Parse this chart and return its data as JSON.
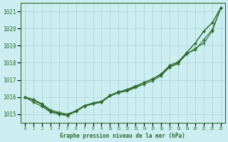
{
  "title": "Graphe pression niveau de la mer (hPa)",
  "bg_color": "#cceef0",
  "grid_color": "#aad4d8",
  "line_color": "#2d6a2d",
  "text_color": "#2d6a2d",
  "xlim_min": -0.5,
  "xlim_max": 23.5,
  "ylim_min": 1014.5,
  "ylim_max": 1021.5,
  "yticks": [
    1015,
    1016,
    1017,
    1018,
    1019,
    1020,
    1021
  ],
  "xticks": [
    0,
    1,
    2,
    3,
    4,
    5,
    6,
    7,
    8,
    9,
    10,
    11,
    12,
    13,
    14,
    15,
    16,
    17,
    18,
    19,
    20,
    21,
    22,
    23
  ],
  "hours": [
    0,
    1,
    2,
    3,
    4,
    5,
    6,
    7,
    8,
    9,
    10,
    11,
    12,
    13,
    14,
    15,
    16,
    17,
    18,
    19,
    20,
    21,
    22,
    23
  ],
  "line1": [
    1016.0,
    1015.85,
    1015.6,
    1015.25,
    1015.1,
    1015.0,
    1015.2,
    1015.5,
    1015.6,
    1015.7,
    1016.1,
    1016.3,
    1016.45,
    1016.65,
    1016.85,
    1017.05,
    1017.3,
    1017.75,
    1018.0,
    1018.5,
    1018.85,
    1019.15,
    1019.85,
    1021.2
  ],
  "line2": [
    1016.0,
    1015.85,
    1015.6,
    1015.2,
    1015.05,
    1014.98,
    1015.2,
    1015.5,
    1015.65,
    1015.75,
    1016.1,
    1016.3,
    1016.4,
    1016.6,
    1016.85,
    1017.05,
    1017.35,
    1017.85,
    1018.05,
    1018.6,
    1019.15,
    1019.85,
    1020.35,
    1021.2
  ],
  "line3": [
    1016.0,
    1015.8,
    1015.55,
    1015.15,
    1015.0,
    1014.92,
    1015.2,
    1015.5,
    1015.65,
    1015.75,
    1016.1,
    1016.3,
    1016.4,
    1016.6,
    1016.85,
    1017.05,
    1017.35,
    1017.85,
    1018.05,
    1018.6,
    1019.15,
    1019.85,
    1020.35,
    1021.2
  ],
  "line4": [
    1016.0,
    1015.7,
    1015.45,
    1015.12,
    1015.0,
    1014.92,
    1015.15,
    1015.45,
    1015.6,
    1015.7,
    1016.05,
    1016.25,
    1016.35,
    1016.55,
    1016.75,
    1016.95,
    1017.25,
    1017.75,
    1017.95,
    1018.55,
    1018.75,
    1019.35,
    1019.95,
    1021.2
  ]
}
